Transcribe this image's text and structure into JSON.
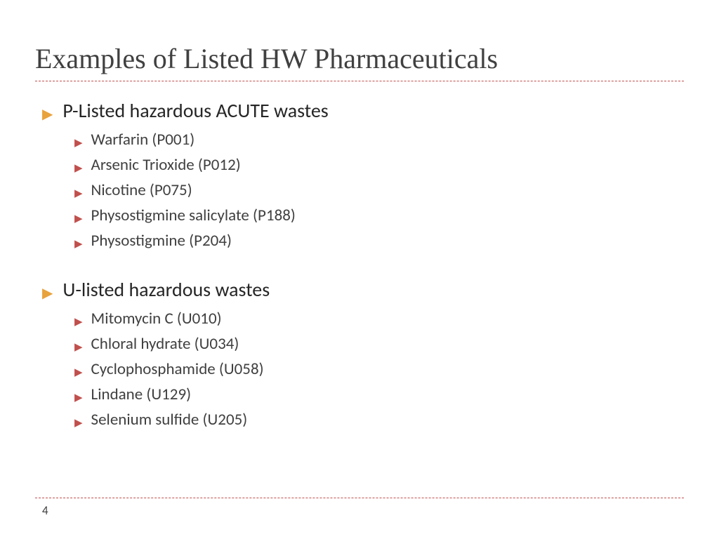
{
  "title": "Examples of Listed HW Pharmaceuticals",
  "colors": {
    "title_text": "#404040",
    "body_text": "#404040",
    "l1_text": "#262626",
    "bullet_l1": "#e8a33d",
    "bullet_l2": "#c0504d",
    "divider": "#c0504d",
    "background": "#ffffff"
  },
  "typography": {
    "title_font": "Georgia",
    "title_size_pt": 40,
    "body_font": "Gill Sans",
    "l1_size_pt": 28,
    "l2_size_pt": 23
  },
  "sections": [
    {
      "heading": "P-Listed hazardous ACUTE wastes",
      "items": [
        "Warfarin (P001)",
        "Arsenic Trioxide (P012)",
        "Nicotine (P075)",
        "Physostigmine salicylate (P188)",
        "Physostigmine (P204)"
      ]
    },
    {
      "heading": "U-listed hazardous wastes",
      "items": [
        "Mitomycin C (U010)",
        "Chloral hydrate (U034)",
        "Cyclophosphamide (U058)",
        "Lindane (U129)",
        "Selenium sulfide (U205)"
      ]
    }
  ],
  "page_number": "4",
  "bullet_glyph": "▶"
}
